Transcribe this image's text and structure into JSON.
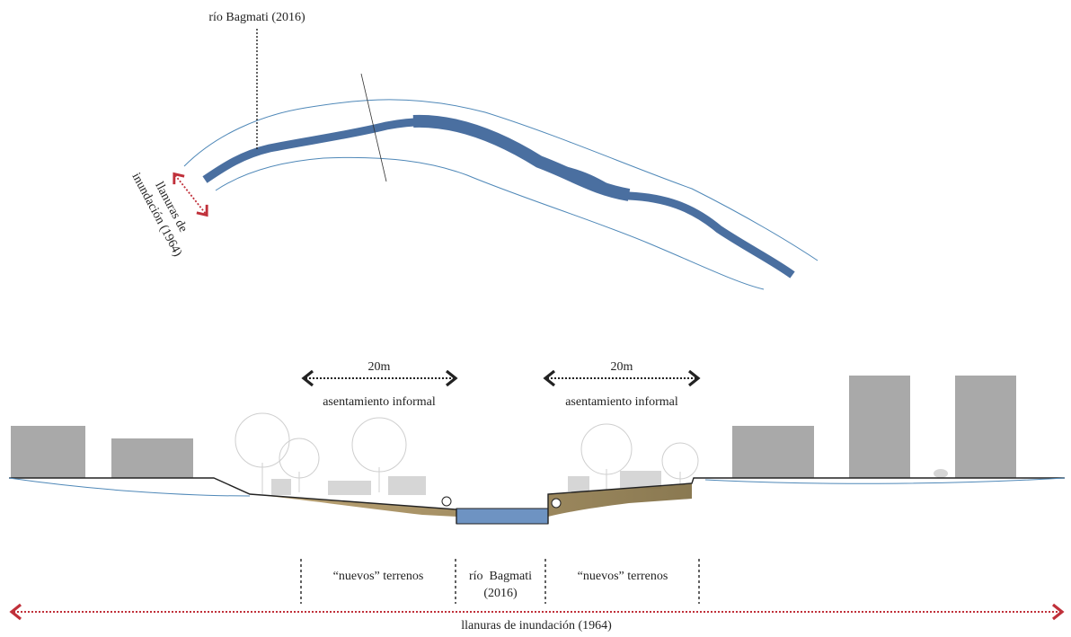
{
  "plan": {
    "river_label": "río Bagmati (2016)",
    "floodplain_label": [
      "llanuras de",
      "inundación (1964)"
    ]
  },
  "section": {
    "left": {
      "width": "20m",
      "label": "asentamiento informal",
      "zone": "“nuevos” terrenos"
    },
    "right": {
      "width": "20m",
      "label": "asentamiento informal",
      "zone": "“nuevos” terrenos"
    },
    "river": [
      "río  Bagmati",
      "(2016)"
    ],
    "floodplain": "llanuras de inundación (1964)"
  }
}
